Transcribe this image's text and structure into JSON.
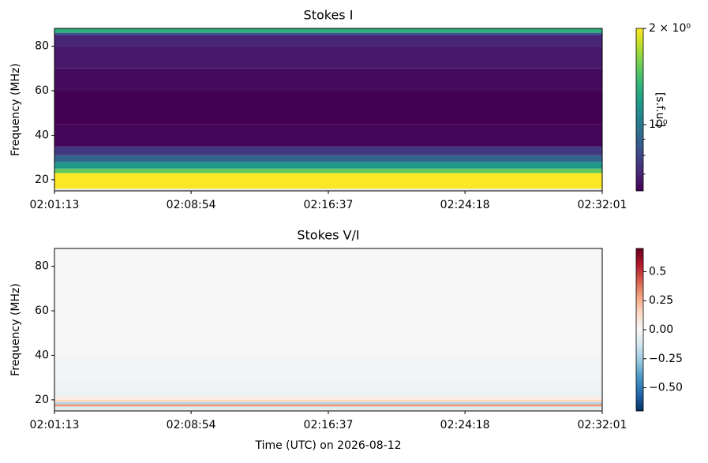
{
  "chart_data": [
    {
      "type": "heatmap",
      "title": "Stokes I",
      "ylabel": "Frequency (MHz)",
      "xlim": [
        "02:01:13",
        "02:32:01"
      ],
      "xticks": [
        "02:01:13",
        "02:08:54",
        "02:16:37",
        "02:24:18",
        "02:32:01"
      ],
      "ylim": [
        15,
        88
      ],
      "yticks": [
        20,
        40,
        60,
        80
      ],
      "y_bins": [
        15,
        16,
        23,
        25,
        28,
        31,
        35,
        45,
        60,
        70,
        80,
        85,
        86,
        88
      ],
      "values": [
        null,
        2.2,
        1.5,
        1.15,
        0.9,
        0.75,
        0.63,
        0.62,
        0.64,
        0.67,
        0.7,
        0.85,
        1.3
      ],
      "colormap": "viridis",
      "log_scale": true,
      "clim": [
        0.62,
        2
      ],
      "cticks": [
        {
          "value": 2,
          "label": "2 × 10⁰"
        },
        {
          "value": 1,
          "label": "10⁰"
        }
      ],
      "cminor": [
        0.7,
        0.8,
        0.9
      ],
      "clabel": "[s.f.u.]"
    },
    {
      "type": "heatmap",
      "title": "Stokes V/I",
      "ylabel": "Frequency (MHz)",
      "xlabel": "Time (UTC) on 2026-08-12",
      "xlim": [
        "02:01:13",
        "02:32:01"
      ],
      "xticks": [
        "02:01:13",
        "02:08:54",
        "02:16:37",
        "02:24:18",
        "02:32:01"
      ],
      "ylim": [
        15,
        88
      ],
      "yticks": [
        20,
        40,
        60,
        80
      ],
      "y_bins": [
        15,
        16,
        17,
        18,
        19,
        20,
        22,
        24,
        30,
        40,
        88
      ],
      "values": [
        null,
        -0.1,
        0.3,
        -0.2,
        0.15,
        0.05,
        -0.05,
        -0.03,
        -0.02,
        0.0
      ],
      "colormap": "RdBu_r",
      "log_scale": false,
      "clim": [
        -0.7,
        0.7
      ],
      "cticks": [
        0.5,
        0.25,
        {
          "value": 0,
          "label": "0.00"
        },
        {
          "value": -0.25,
          "label": "−0.25"
        },
        {
          "value": -0.5,
          "label": "−0.50"
        }
      ],
      "clabel": null
    }
  ]
}
